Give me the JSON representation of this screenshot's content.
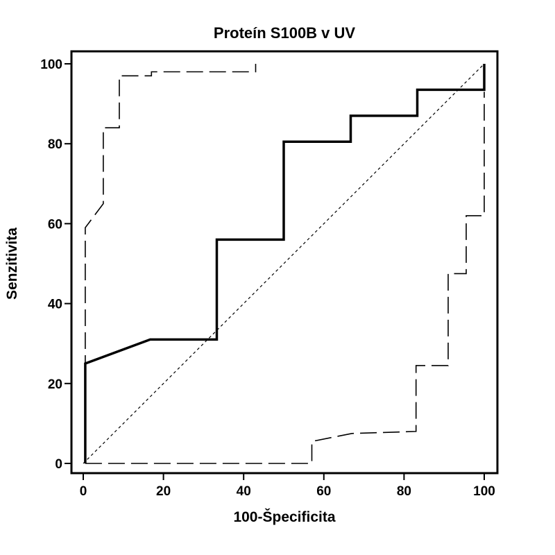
{
  "chart_data": {
    "type": "line",
    "title": "Proteín S100B v UV",
    "xlabel": "100-Špecificita",
    "ylabel": "Senzitivita",
    "xlim": [
      0,
      100
    ],
    "ylim": [
      0,
      100
    ],
    "xticks": [
      0,
      20,
      40,
      60,
      80,
      100
    ],
    "yticks": [
      0,
      20,
      40,
      60,
      80,
      100
    ],
    "grid": false,
    "series": [
      {
        "style": "solid-thick",
        "points": [
          [
            0.5,
            0
          ],
          [
            0.5,
            25
          ],
          [
            16.7,
            31
          ],
          [
            33.3,
            31
          ],
          [
            33.3,
            56
          ],
          [
            50,
            56
          ],
          [
            50,
            80.5
          ],
          [
            66.7,
            80.5
          ],
          [
            66.7,
            87
          ],
          [
            83.3,
            87
          ],
          [
            83.3,
            93.5
          ],
          [
            100,
            93.5
          ],
          [
            100,
            100
          ]
        ]
      },
      {
        "style": "dashed",
        "points": [
          [
            0.5,
            0
          ],
          [
            0.5,
            59
          ],
          [
            5,
            65
          ],
          [
            5,
            84
          ],
          [
            9,
            84
          ],
          [
            9,
            97
          ],
          [
            17,
            97
          ],
          [
            17,
            98
          ],
          [
            43,
            98
          ],
          [
            43,
            100
          ]
        ]
      },
      {
        "style": "dashed",
        "points": [
          [
            0.5,
            0
          ],
          [
            57,
            0
          ],
          [
            57,
            5.5
          ],
          [
            67,
            7.5
          ],
          [
            83,
            8
          ],
          [
            83,
            24.5
          ],
          [
            91,
            24.5
          ],
          [
            91,
            47.5
          ],
          [
            95.5,
            47.5
          ],
          [
            95.5,
            62
          ],
          [
            100,
            62
          ],
          [
            100,
            93
          ]
        ]
      },
      {
        "style": "dotted-diagonal",
        "points": [
          [
            0,
            0
          ],
          [
            100,
            100
          ]
        ]
      }
    ]
  }
}
